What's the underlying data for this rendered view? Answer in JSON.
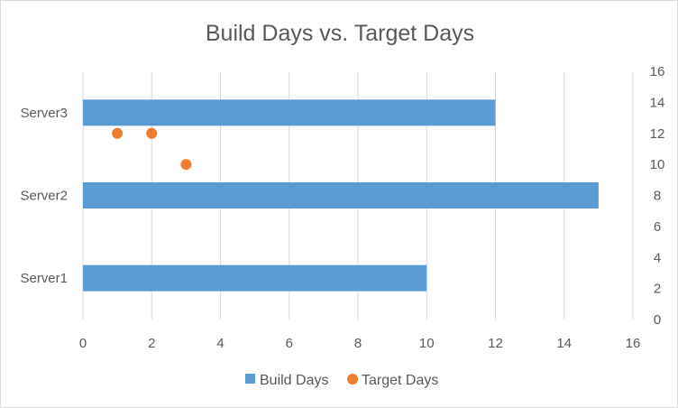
{
  "chart_data": {
    "type": "bar",
    "orientation": "horizontal",
    "title": "Build Days vs. Target Days",
    "categories": [
      "Server1",
      "Server2",
      "Server3"
    ],
    "series": [
      {
        "name": "Build Days",
        "type": "bar",
        "axis": "primary",
        "color": "#5b9bd5",
        "values": [
          10,
          15,
          12
        ]
      },
      {
        "name": "Target Days",
        "type": "scatter",
        "axis": "secondary",
        "color": "#ed7d31",
        "points": [
          {
            "x": 1,
            "y": 12
          },
          {
            "x": 2,
            "y": 12
          },
          {
            "x": 3,
            "y": 10
          }
        ]
      }
    ],
    "x_axis": {
      "range": [
        0,
        16
      ],
      "ticks": [
        "0",
        "2",
        "4",
        "6",
        "8",
        "10",
        "12",
        "14",
        "16"
      ]
    },
    "y2_axis": {
      "range": [
        0,
        16
      ],
      "ticks": [
        "0",
        "2",
        "4",
        "6",
        "8",
        "10",
        "12",
        "14",
        "16"
      ]
    },
    "grid": "vertical",
    "legend": "bottom"
  }
}
